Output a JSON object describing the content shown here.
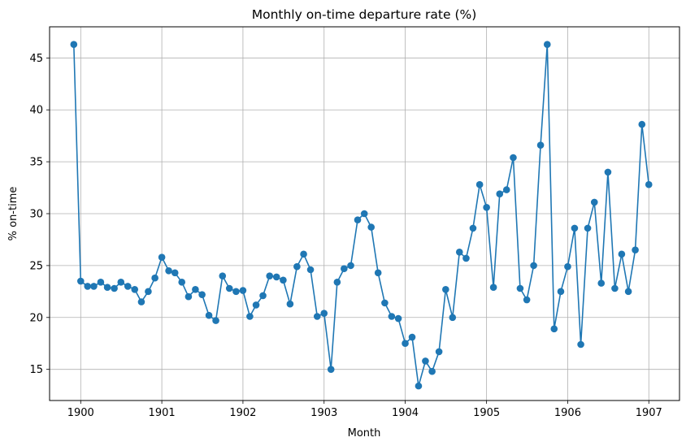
{
  "chart_data": {
    "type": "line",
    "title": "Monthly on-time departure rate (%)",
    "xlabel": "Month",
    "ylabel": "% on-time",
    "x_ticks": [
      "1900",
      "1901",
      "1902",
      "1903",
      "1904",
      "1905",
      "1906",
      "1907"
    ],
    "y_ticks": [
      "15",
      "20",
      "25",
      "30",
      "35",
      "40",
      "45"
    ],
    "xlim": [
      "1899-08-14",
      "1907-05-19"
    ],
    "ylim": [
      12,
      48
    ],
    "grid": true,
    "marker": "circle",
    "color": "#1f77b4",
    "series": [
      {
        "x": [
          "1899-12-01",
          "1900-01-01",
          "1900-02-01",
          "1900-03-01",
          "1900-04-01",
          "1900-05-01",
          "1900-06-01",
          "1900-07-01",
          "1900-08-01",
          "1900-09-01",
          "1900-10-01",
          "1900-11-01",
          "1900-12-01",
          "1901-01-01",
          "1901-02-01",
          "1901-03-01",
          "1901-04-01",
          "1901-05-01",
          "1901-06-01",
          "1901-07-01",
          "1901-08-01",
          "1901-09-01",
          "1901-10-01",
          "1901-11-01",
          "1901-12-01",
          "1902-01-01",
          "1902-02-01",
          "1902-03-01",
          "1902-04-01",
          "1902-05-01",
          "1902-06-01",
          "1902-07-01",
          "1902-08-01",
          "1902-09-01",
          "1902-10-01",
          "1902-11-01",
          "1902-12-01",
          "1903-01-01",
          "1903-02-01",
          "1903-03-01",
          "1903-04-01",
          "1903-05-01",
          "1903-06-01",
          "1903-07-01",
          "1903-08-01",
          "1903-09-01",
          "1903-10-01",
          "1903-11-01",
          "1903-12-01",
          "1904-01-01",
          "1904-02-01",
          "1904-03-01",
          "1904-04-01",
          "1904-05-01",
          "1904-06-01",
          "1904-07-01",
          "1904-08-01",
          "1904-09-01",
          "1904-10-01",
          "1904-11-01",
          "1904-12-01",
          "1905-01-01",
          "1905-02-01",
          "1905-03-01",
          "1905-04-01",
          "1905-05-01",
          "1905-06-01",
          "1905-07-01",
          "1905-08-01",
          "1905-09-01",
          "1905-10-01",
          "1905-11-01",
          "1905-12-01",
          "1906-01-01",
          "1906-02-01",
          "1906-03-01",
          "1906-04-01",
          "1906-05-01",
          "1906-06-01",
          "1906-07-01",
          "1906-08-01",
          "1906-09-01",
          "1906-10-01",
          "1906-11-01",
          "1906-12-01",
          "1907-01-01"
        ],
        "y": [
          46.3,
          23.5,
          23.0,
          23.0,
          23.4,
          22.9,
          22.8,
          23.4,
          23.0,
          22.7,
          21.5,
          22.5,
          23.8,
          25.8,
          24.5,
          24.3,
          23.4,
          22.0,
          22.7,
          22.2,
          20.2,
          19.7,
          24.0,
          22.8,
          22.5,
          22.6,
          20.1,
          21.2,
          22.1,
          24.0,
          23.9,
          23.6,
          21.3,
          24.9,
          26.1,
          24.6,
          20.1,
          20.4,
          15.0,
          23.4,
          24.7,
          25.0,
          29.4,
          30.0,
          28.7,
          24.3,
          21.4,
          20.1,
          19.9,
          17.5,
          18.1,
          13.4,
          15.8,
          14.8,
          16.7,
          22.7,
          20.0,
          26.3,
          25.7,
          28.6,
          32.8,
          30.6,
          22.9,
          31.9,
          32.3,
          35.4,
          22.8,
          21.7,
          25.0,
          36.6,
          46.3,
          18.9,
          22.5,
          24.9,
          28.6,
          17.4,
          28.6,
          31.1,
          23.3,
          34.0,
          22.8,
          26.1,
          22.5,
          26.5,
          38.6,
          32.8
        ]
      }
    ]
  }
}
